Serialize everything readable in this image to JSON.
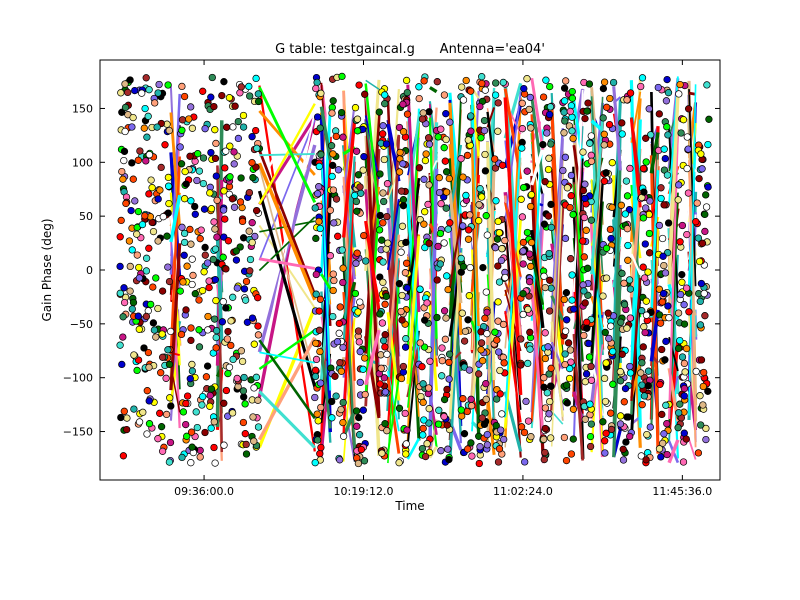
{
  "chart_data": {
    "type": "scatter",
    "title": "G table: testgaincal.g      Antenna='ea04'",
    "xlabel": "Time",
    "ylabel": "Gain Phase (deg)",
    "x_tick_labels": [
      "09:36:00.0",
      "10:19:12.0",
      "11:02:24.0",
      "11:45:36.0"
    ],
    "x_ticks_hours": [
      9.6,
      10.32,
      11.04,
      11.76
    ],
    "xlim_hours": [
      9.13,
      11.93
    ],
    "ylim": [
      -195,
      195
    ],
    "y_ticks": [
      -150,
      -100,
      -50,
      0,
      50,
      100,
      150
    ],
    "y_value_range": [
      -180,
      180
    ],
    "grid": false,
    "legend": "none",
    "scan_time_ranges_hours": [
      [
        9.22,
        9.45
      ],
      [
        9.49,
        9.66
      ],
      [
        9.68,
        9.85
      ],
      [
        10.1,
        10.13
      ],
      [
        10.17,
        10.23
      ],
      [
        10.28,
        10.33
      ],
      [
        10.39,
        10.43
      ],
      [
        10.48,
        10.52
      ],
      [
        10.57,
        10.62
      ],
      [
        10.65,
        10.71
      ],
      [
        10.76,
        10.81
      ],
      [
        10.84,
        10.88
      ],
      [
        10.91,
        10.96
      ],
      [
        11.03,
        11.08
      ],
      [
        11.13,
        11.17
      ],
      [
        11.22,
        11.27
      ],
      [
        11.31,
        11.35
      ],
      [
        11.4,
        11.45
      ],
      [
        11.48,
        11.53
      ],
      [
        11.57,
        11.62
      ],
      [
        11.65,
        11.7
      ],
      [
        11.74,
        11.79
      ],
      [
        11.82,
        11.88
      ]
    ],
    "series_colors": [
      "#ff8c00",
      "#00ffff",
      "#a52a2a",
      "#deb887",
      "#7b68ee",
      "#40e0d0",
      "#c71585",
      "#2e8b57",
      "#ffff00",
      "#ff0000",
      "#00ff00",
      "#0000cd",
      "#006400",
      "#ffa07a",
      "#8b0000",
      "#ff69b4",
      "#9370db",
      "#ffffff",
      "#000000",
      "#f0e68c",
      "#20b2aa",
      "#ff4500"
    ],
    "point_style": "circle-black-edge"
  }
}
